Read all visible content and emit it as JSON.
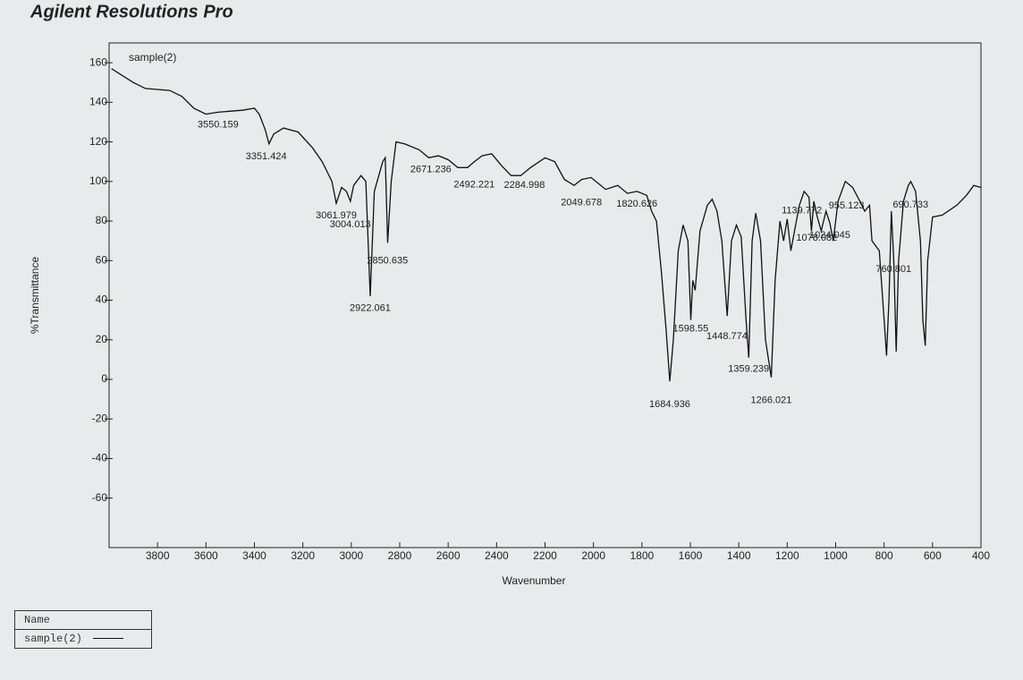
{
  "chart_data": {
    "type": "line",
    "title": "Agilent Resolutions Pro",
    "x_label": "Wavenumber",
    "y_label": "%Transmittance",
    "legend_header": "Name",
    "xlim": [
      4000,
      400
    ],
    "ylim": [
      -85,
      170
    ],
    "xticks": [
      3800,
      3600,
      3400,
      3200,
      3000,
      2800,
      2600,
      2400,
      2200,
      2000,
      1800,
      1600,
      1400,
      1200,
      1000,
      800,
      600,
      400
    ],
    "yticks": [
      160,
      140,
      120,
      100,
      80,
      60,
      40,
      20,
      0,
      -20,
      -40,
      -60
    ],
    "x": [
      3990,
      3900,
      3850,
      3750,
      3700,
      3650,
      3600,
      3550,
      3450,
      3400,
      3380,
      3355,
      3340,
      3320,
      3280,
      3220,
      3160,
      3120,
      3080,
      3062,
      3040,
      3020,
      3004,
      2990,
      2960,
      2940,
      2922,
      2905,
      2870,
      2860,
      2850,
      2835,
      2815,
      2780,
      2720,
      2680,
      2640,
      2600,
      2560,
      2520,
      2492,
      2460,
      2420,
      2380,
      2340,
      2300,
      2260,
      2200,
      2160,
      2120,
      2080,
      2049,
      2010,
      1980,
      1950,
      1900,
      1860,
      1820,
      1780,
      1760,
      1740,
      1720,
      1700,
      1685,
      1670,
      1650,
      1630,
      1610,
      1598,
      1590,
      1580,
      1560,
      1530,
      1510,
      1490,
      1470,
      1448,
      1430,
      1410,
      1390,
      1370,
      1359,
      1345,
      1330,
      1310,
      1290,
      1266,
      1250,
      1230,
      1215,
      1200,
      1185,
      1170,
      1150,
      1130,
      1110,
      1100,
      1090,
      1078,
      1060,
      1040,
      1024,
      1010,
      990,
      960,
      930,
      900,
      880,
      860,
      850,
      820,
      800,
      790,
      780,
      770,
      760,
      750,
      740,
      720,
      700,
      690,
      670,
      650,
      640,
      630,
      620,
      600,
      560,
      500,
      460,
      430,
      400
    ],
    "series": [
      {
        "name": "sample(2)",
        "color": "#111111",
        "values": [
          157,
          150,
          147,
          146,
          143,
          137,
          134,
          135,
          136,
          137,
          134,
          126,
          119,
          124,
          127,
          125,
          117,
          110,
          100,
          89,
          97,
          95,
          90,
          98,
          103,
          100,
          42,
          95,
          110,
          112,
          69,
          100,
          120,
          119,
          116,
          112,
          113,
          111,
          107,
          107,
          110,
          113,
          114,
          108,
          103,
          103,
          107,
          112,
          110,
          101,
          98,
          101,
          102,
          99,
          96,
          98,
          94,
          95,
          93,
          85,
          80,
          55,
          25,
          -1,
          20,
          65,
          78,
          70,
          30,
          50,
          45,
          75,
          88,
          91,
          85,
          70,
          32,
          70,
          78,
          72,
          30,
          11,
          70,
          84,
          70,
          20,
          1,
          50,
          80,
          70,
          81,
          65,
          75,
          88,
          95,
          92,
          75,
          90,
          83,
          75,
          85,
          79,
          70,
          90,
          100,
          97,
          90,
          85,
          88,
          70,
          65,
          30,
          12,
          40,
          85,
          60,
          14,
          60,
          90,
          98,
          100,
          95,
          70,
          30,
          17,
          60,
          82,
          83,
          88,
          93,
          98,
          97
        ]
      }
    ],
    "annotations": [
      3550.159,
      3351.424,
      3061.979,
      3004.013,
      2922.061,
      2850.635,
      2671.236,
      2492.221,
      2284.998,
      2049.678,
      1820.626,
      1684.936,
      1598.55,
      1448.774,
      1359.239,
      1266.021,
      1139.772,
      1078.082,
      1024.045,
      955.123,
      760.801,
      690.733
    ]
  }
}
